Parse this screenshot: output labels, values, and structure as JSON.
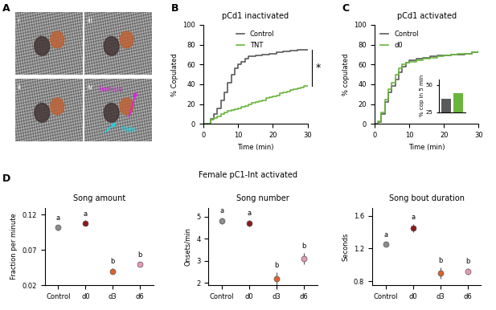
{
  "figure_title": "Female pC1-Int activated",
  "chart_data": [
    {
      "type": "image",
      "panel": "A",
      "frames": [
        "i",
        "ii",
        "iii",
        "iv"
      ],
      "annotations": [
        {
          "text": "Female",
          "color": "#e020e0"
        },
        {
          "text": "Male",
          "color": "#20d0e0"
        }
      ]
    },
    {
      "type": "line",
      "panel": "B",
      "title": "pCd1 inactivated",
      "x_label": "Time (min)",
      "y_label": "% Copulated",
      "line_style": "steps",
      "legend": "upper center",
      "xlim": [
        0,
        30
      ],
      "xticks": [
        0,
        10,
        20,
        30
      ],
      "ylim": [
        0,
        100
      ],
      "yticks": [
        0,
        20,
        40,
        60,
        80,
        100
      ],
      "annotations": [
        {
          "text": "*"
        }
      ],
      "series": [
        {
          "name": "Control",
          "color": "#5a5a5a",
          "x": [
            0,
            1,
            2,
            3,
            4,
            5,
            6,
            7,
            8,
            9,
            10,
            11,
            12,
            13,
            14,
            15,
            16,
            17,
            18,
            19,
            20,
            21,
            22,
            23,
            24,
            25,
            26,
            27,
            28,
            29,
            30
          ],
          "values": [
            0,
            0,
            5,
            10,
            16,
            24,
            32,
            42,
            50,
            56,
            60,
            63,
            66,
            68,
            68,
            69,
            69,
            70,
            70,
            71,
            71,
            72,
            72,
            73,
            73,
            74,
            74,
            75,
            75,
            75,
            75
          ]
        },
        {
          "name": "TNT",
          "color": "#6ab53c",
          "x": [
            0,
            1,
            2,
            3,
            4,
            5,
            6,
            7,
            8,
            9,
            10,
            11,
            12,
            13,
            14,
            15,
            16,
            17,
            18,
            19,
            20,
            21,
            22,
            23,
            24,
            25,
            26,
            27,
            28,
            29,
            30
          ],
          "values": [
            0,
            0,
            4,
            6,
            8,
            10,
            12,
            13,
            14,
            15,
            16,
            17,
            18,
            20,
            21,
            22,
            23,
            24,
            26,
            27,
            28,
            29,
            31,
            32,
            33,
            34,
            35,
            36,
            37,
            38,
            38
          ]
        }
      ]
    },
    {
      "type": "line",
      "panel": "C",
      "title": "pCd1 activated",
      "x_label": "Time (min)",
      "y_label": "% copulated",
      "line_style": "steps",
      "legend": "upper left",
      "xlim": [
        0,
        30
      ],
      "xticks": [
        0,
        10,
        20,
        30
      ],
      "ylim": [
        0,
        100
      ],
      "yticks": [
        0,
        20,
        40,
        60,
        80,
        100
      ],
      "series": [
        {
          "name": "Control",
          "color": "#5a5a5a",
          "x": [
            0,
            1,
            2,
            3,
            4,
            5,
            6,
            7,
            8,
            9,
            10,
            12,
            14,
            16,
            18,
            20,
            22,
            24,
            26,
            28,
            30
          ],
          "values": [
            0,
            2,
            10,
            22,
            32,
            38,
            45,
            52,
            58,
            62,
            64,
            66,
            67,
            68,
            69,
            69,
            70,
            70,
            71,
            72,
            72
          ]
        },
        {
          "name": "d0",
          "color": "#6ab53c",
          "x": [
            0,
            1,
            2,
            3,
            4,
            5,
            6,
            7,
            8,
            9,
            10,
            12,
            14,
            16,
            18,
            20,
            22,
            24,
            26,
            28,
            30
          ],
          "values": [
            0,
            3,
            12,
            25,
            35,
            42,
            50,
            56,
            60,
            62,
            63,
            64,
            66,
            67,
            68,
            69,
            70,
            71,
            71,
            72,
            73
          ]
        }
      ]
    },
    {
      "type": "bar",
      "y_label": "% cop in 5 min",
      "categories": [
        null,
        null
      ],
      "values": [
        37,
        42
      ],
      "colors": [
        "#5a5a5a",
        "#6ab53c"
      ],
      "ylim": [
        25,
        55
      ],
      "yticks": [
        25,
        50
      ]
    },
    {
      "type": "scatter",
      "panel": "D",
      "title": "Song amount",
      "y_label": "Fraction per minute",
      "categories": [
        "Control",
        "d0",
        "d3",
        "d6"
      ],
      "values": [
        0.102,
        0.108,
        0.04,
        0.05
      ],
      "errors": [
        0.004,
        0.004,
        0.004,
        0.003
      ],
      "colors": [
        "#8c8c8c",
        "#8b1a1a",
        "#e0602a",
        "#e89ab0"
      ],
      "annotations": [
        "a",
        "a",
        "b",
        "b"
      ],
      "ylim": [
        0.02,
        0.13
      ],
      "yticks": [
        0.02,
        0.07,
        0.12
      ]
    },
    {
      "type": "scatter",
      "title": "Song number",
      "y_label": "Onsets/min",
      "categories": [
        "Control",
        "d0",
        "d3",
        "d6"
      ],
      "values": [
        4.8,
        4.7,
        2.2,
        3.1
      ],
      "errors": [
        0.15,
        0.15,
        0.3,
        0.25
      ],
      "colors": [
        "#8c8c8c",
        "#8b1a1a",
        "#e0602a",
        "#e89ab0"
      ],
      "annotations": [
        "a",
        "a",
        "b",
        "b"
      ],
      "ylim": [
        1.9,
        5.4
      ],
      "yticks": [
        2,
        3,
        4,
        5
      ]
    },
    {
      "type": "scatter",
      "title": "Song bout duration",
      "y_label": "Seconds",
      "categories": [
        "Control",
        "d0",
        "d3",
        "d6"
      ],
      "values": [
        1.25,
        1.45,
        0.9,
        0.92
      ],
      "errors": [
        0.03,
        0.05,
        0.07,
        0.04
      ],
      "colors": [
        "#8c8c8c",
        "#8b1a1a",
        "#e0602a",
        "#e89ab0"
      ],
      "annotations": [
        "a",
        "a",
        "b",
        "b"
      ],
      "ylim": [
        0.75,
        1.7
      ],
      "yticks": [
        0.8,
        1.2,
        1.6
      ]
    }
  ]
}
